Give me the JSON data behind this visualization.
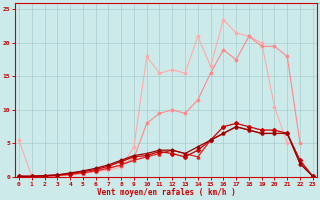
{
  "x": [
    0,
    1,
    2,
    3,
    4,
    5,
    6,
    7,
    8,
    9,
    10,
    11,
    12,
    13,
    14,
    15,
    16,
    17,
    18,
    19,
    20,
    21,
    22,
    23
  ],
  "series": [
    {
      "color": "#ffaaaa",
      "lw": 0.8,
      "marker": "D",
      "markersize": 1.5,
      "values": [
        5.5,
        0.1,
        0.1,
        0.2,
        0.3,
        0.5,
        0.8,
        1.0,
        1.5,
        4.5,
        18.0,
        15.5,
        16.0,
        15.5,
        21.0,
        16.5,
        23.5,
        21.5,
        21.0,
        20.0,
        10.5,
        5.0,
        null,
        null
      ]
    },
    {
      "color": "#ff8888",
      "lw": 0.8,
      "marker": "D",
      "markersize": 1.5,
      "values": [
        null,
        0.1,
        0.1,
        0.2,
        0.3,
        0.6,
        0.9,
        1.3,
        1.8,
        2.8,
        8.0,
        9.5,
        10.0,
        9.5,
        11.5,
        15.5,
        19.0,
        17.5,
        21.0,
        19.5,
        19.5,
        18.0,
        5.0,
        null
      ]
    },
    {
      "color": "#dd2222",
      "lw": 0.9,
      "marker": "^",
      "markersize": 2.0,
      "values": [
        0.1,
        0.1,
        0.1,
        0.2,
        0.4,
        0.6,
        0.9,
        1.3,
        1.8,
        2.5,
        3.0,
        3.5,
        4.0,
        3.5,
        3.0,
        5.5,
        6.5,
        7.5,
        7.0,
        6.5,
        6.5,
        6.5,
        2.0,
        0.1
      ]
    },
    {
      "color": "#cc0000",
      "lw": 0.9,
      "marker": "D",
      "markersize": 2.0,
      "values": [
        0.1,
        0.1,
        0.2,
        0.3,
        0.5,
        0.8,
        1.1,
        1.6,
        2.3,
        3.0,
        3.2,
        3.8,
        3.5,
        3.0,
        4.0,
        5.5,
        7.5,
        8.0,
        7.5,
        7.0,
        7.0,
        6.5,
        2.5,
        0.1
      ]
    },
    {
      "color": "#990000",
      "lw": 0.9,
      "marker": "D",
      "markersize": 1.5,
      "values": [
        0.1,
        0.1,
        0.2,
        0.3,
        0.6,
        0.9,
        1.3,
        1.8,
        2.5,
        3.2,
        3.5,
        4.0,
        4.0,
        3.5,
        4.5,
        5.5,
        6.5,
        7.5,
        7.0,
        6.5,
        6.5,
        6.5,
        2.0,
        0.1
      ]
    }
  ],
  "xlim": [
    -0.3,
    23.3
  ],
  "ylim": [
    0,
    26
  ],
  "yticks": [
    0,
    5,
    10,
    15,
    20,
    25
  ],
  "xticks": [
    0,
    1,
    2,
    3,
    4,
    5,
    6,
    7,
    8,
    9,
    10,
    11,
    12,
    13,
    14,
    15,
    16,
    17,
    18,
    19,
    20,
    21,
    22,
    23
  ],
  "xlabel": "Vent moyen/en rafales ( km/h )",
  "bg_color": "#cceaea",
  "grid_color": "#aacccc",
  "axis_color": "#cc0000",
  "tick_color": "#cc0000",
  "label_color": "#cc0000",
  "figsize": [
    3.2,
    2.0
  ],
  "dpi": 100
}
